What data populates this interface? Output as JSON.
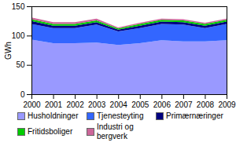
{
  "chart_data": {
    "type": "area",
    "stacked": true,
    "y_label": "GWh",
    "x": [
      2000,
      2001,
      2002,
      2003,
      2004,
      2005,
      2006,
      2007,
      2008,
      2009
    ],
    "xlim": [
      2000,
      2009
    ],
    "xticks": [
      2000,
      2001,
      2002,
      2003,
      2004,
      2005,
      2006,
      2007,
      2008,
      2009
    ],
    "ylim": [
      0,
      150
    ],
    "yticks": [
      0,
      50,
      100,
      150
    ],
    "grid": false,
    "legend": "bottom",
    "series": [
      {
        "name": "Husholdninger",
        "color": "#9999ff",
        "values": [
          93,
          87,
          87,
          88,
          84,
          87,
          92,
          90,
          90,
          92
        ]
      },
      {
        "name": "Tjenesteyting",
        "color": "#3366ff",
        "values": [
          27,
          26,
          26,
          31,
          23,
          26,
          28,
          29,
          23,
          28
        ]
      },
      {
        "name": "Primærnæringer",
        "color": "#000080",
        "values": [
          5,
          4,
          4,
          4,
          3,
          4,
          4,
          4,
          4,
          4
        ]
      },
      {
        "name": "Fritidsboliger",
        "color": "#00cc00",
        "values": [
          3,
          3,
          3,
          3,
          2,
          3,
          3,
          3,
          3,
          3
        ]
      },
      {
        "name": "Industri og bergverk",
        "color": "#cc6699",
        "values": [
          3,
          3,
          3,
          3,
          2,
          2,
          2,
          2,
          2,
          2
        ]
      }
    ]
  }
}
